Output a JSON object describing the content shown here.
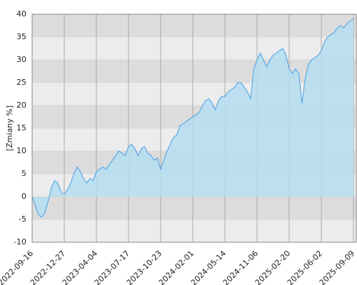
{
  "chart_data": {
    "type": "area",
    "y_label": "[Zmiany %]",
    "categories": [
      "2022-09-16",
      null,
      null,
      null,
      null,
      null,
      null,
      null,
      null,
      null,
      "2022-12-27",
      null,
      null,
      null,
      null,
      null,
      null,
      null,
      null,
      null,
      "2023-04-04",
      null,
      null,
      null,
      null,
      null,
      null,
      null,
      null,
      null,
      "2023-07-17",
      null,
      null,
      null,
      null,
      null,
      null,
      null,
      null,
      null,
      "2023-10-23",
      null,
      null,
      null,
      null,
      null,
      null,
      null,
      null,
      null,
      "2024-02-01",
      null,
      null,
      null,
      null,
      null,
      null,
      null,
      null,
      null,
      "2024-05-14",
      null,
      null,
      null,
      null,
      null,
      null,
      null,
      null,
      null,
      "2024-11-06",
      null,
      null,
      null,
      null,
      null,
      null,
      null,
      null,
      null,
      "2025-02-20",
      null,
      null,
      null,
      null,
      null,
      null,
      null,
      null,
      null,
      "2025-06-02",
      null,
      null,
      null,
      null,
      null,
      null,
      null,
      null,
      null,
      "2025-09-09"
    ],
    "values": [
      0,
      -2,
      -4,
      -4.5,
      -3.5,
      -1,
      2,
      3.5,
      3,
      1,
      0.5,
      1.5,
      3,
      5,
      6.5,
      5.5,
      4,
      3,
      4,
      3.5,
      5.5,
      6,
      6.5,
      6,
      7,
      8,
      9,
      10,
      9.5,
      9,
      11,
      11.5,
      10.5,
      9,
      10.5,
      11,
      9.5,
      9,
      8,
      8.5,
      6,
      8,
      10,
      11.5,
      13,
      13.5,
      15.5,
      16,
      16.5,
      17,
      17.5,
      18,
      18.5,
      20,
      21,
      21.5,
      20.5,
      19,
      21,
      22,
      22,
      23,
      23.5,
      24,
      25,
      25,
      24,
      23,
      21.5,
      28,
      30,
      31.5,
      30,
      28.5,
      30,
      31,
      31.5,
      32,
      32.5,
      31,
      28,
      27,
      28,
      27,
      20.5,
      26,
      29,
      30,
      30.5,
      31,
      32,
      34,
      35,
      35.5,
      36,
      37,
      37.5,
      37,
      38,
      38.5,
      39
    ],
    "line_color": "#4a9fe8",
    "fill_color": "#b4def0",
    "band_colors": [
      "#dcdcdc",
      "#ececec"
    ],
    "ylim": [
      -10,
      40
    ],
    "yticks": [
      -10,
      -5,
      0,
      5,
      10,
      15,
      20,
      25,
      30,
      35,
      40
    ],
    "grid": true
  }
}
